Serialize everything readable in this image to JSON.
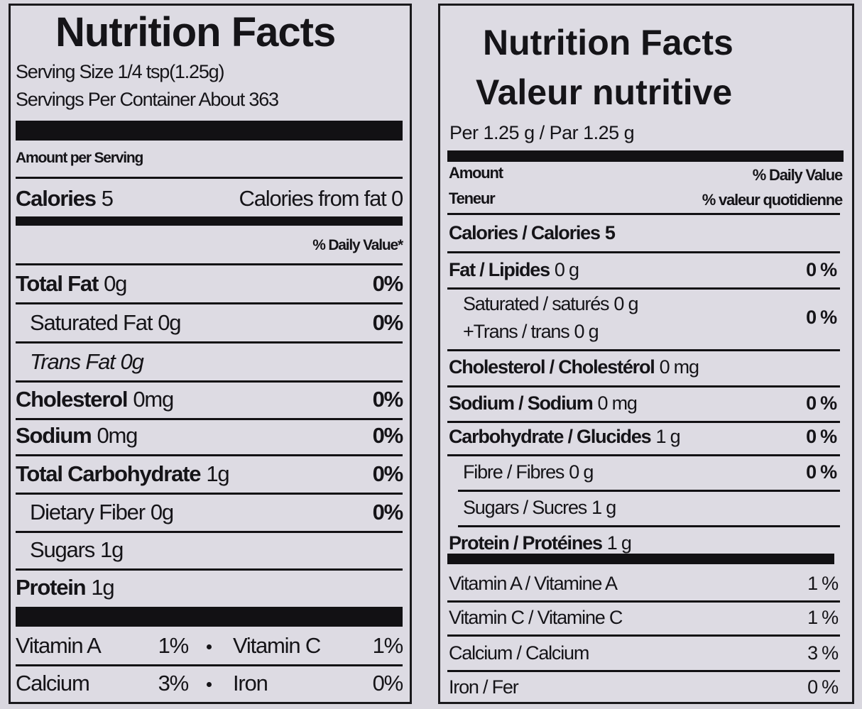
{
  "left": {
    "title": "Nutrition Facts",
    "serving_size": "Serving Size 1/4 tsp(1.25g)",
    "servings": "Servings Per Container About 363",
    "amount_per_serving": "Amount per Serving",
    "calories": {
      "label": "Calories",
      "value": "5"
    },
    "calories_from_fat": "Calories from fat 0",
    "daily_value_header": "% Daily Value*",
    "rows": [
      {
        "name": "Total Fat",
        "amount": "0g",
        "dv": "0%"
      },
      {
        "name": "Saturated Fat",
        "amount": "0g",
        "dv": "0%",
        "indent": true
      },
      {
        "name": "Trans Fat",
        "amount": "0g",
        "indent": true,
        "italic": true
      },
      {
        "name": "Cholesterol",
        "amount": "0mg",
        "dv": "0%"
      },
      {
        "name": "Sodium",
        "amount": "0mg",
        "dv": "0%"
      },
      {
        "name": "Total Carbohydrate",
        "amount": "1g",
        "dv": "0%"
      },
      {
        "name": "Dietary Fiber",
        "amount": "0g",
        "dv": "0%",
        "indent": true
      },
      {
        "name": "Sugars",
        "amount": "1g",
        "indent": true
      },
      {
        "name": "Protein",
        "amount": "1g"
      }
    ],
    "vitamins": [
      {
        "name": "Vitamin A",
        "dv": "1%"
      },
      {
        "name": "Vitamin C",
        "dv": "1%"
      },
      {
        "name": "Calcium",
        "dv": "3%"
      },
      {
        "name": "Iron",
        "dv": "0%"
      }
    ]
  },
  "right": {
    "title": "Nutrition Facts",
    "title_fr": "Valeur nutritive",
    "per": "Per 1.25 g / Par 1.25 g",
    "amount": "Amount",
    "amount_fr": "Teneur",
    "daily_value": "% Daily Value",
    "daily_value_fr": "% valeur quotidienne",
    "calories": {
      "label": "Calories / Calories",
      "value": "5"
    },
    "rows": [
      {
        "name": "Fat / Lipides",
        "amount": "0 g",
        "dv": "0 %"
      },
      {
        "name": "Saturated / saturés",
        "amount": "0 g",
        "dv": "0 %",
        "indent": true
      },
      {
        "name": "+Trans / trans",
        "amount": "0 g",
        "indent": true
      },
      {
        "name": "Cholesterol / Cholestérol",
        "amount": "0 mg"
      },
      {
        "name": "Sodium / Sodium",
        "amount": "0 mg",
        "dv": "0 %"
      },
      {
        "name": "Carbohydrate / Glucides",
        "amount": "1 g",
        "dv": "0 %"
      },
      {
        "name": "Fibre / Fibres",
        "amount": "0 g",
        "dv": "0 %",
        "indent": true
      },
      {
        "name": "Sugars / Sucres",
        "amount": "1 g",
        "indent": true
      },
      {
        "name": "Protein / Protéines",
        "amount": "1 g"
      }
    ],
    "vitamins": [
      {
        "name": "Vitamin A / Vitamine A",
        "dv": "1 %"
      },
      {
        "name": "Vitamin C / Vitamine C",
        "dv": "1 %"
      },
      {
        "name": "Calcium / Calcium",
        "dv": "3 %"
      },
      {
        "name": "Iron / Fer",
        "dv": "0 %"
      }
    ]
  }
}
